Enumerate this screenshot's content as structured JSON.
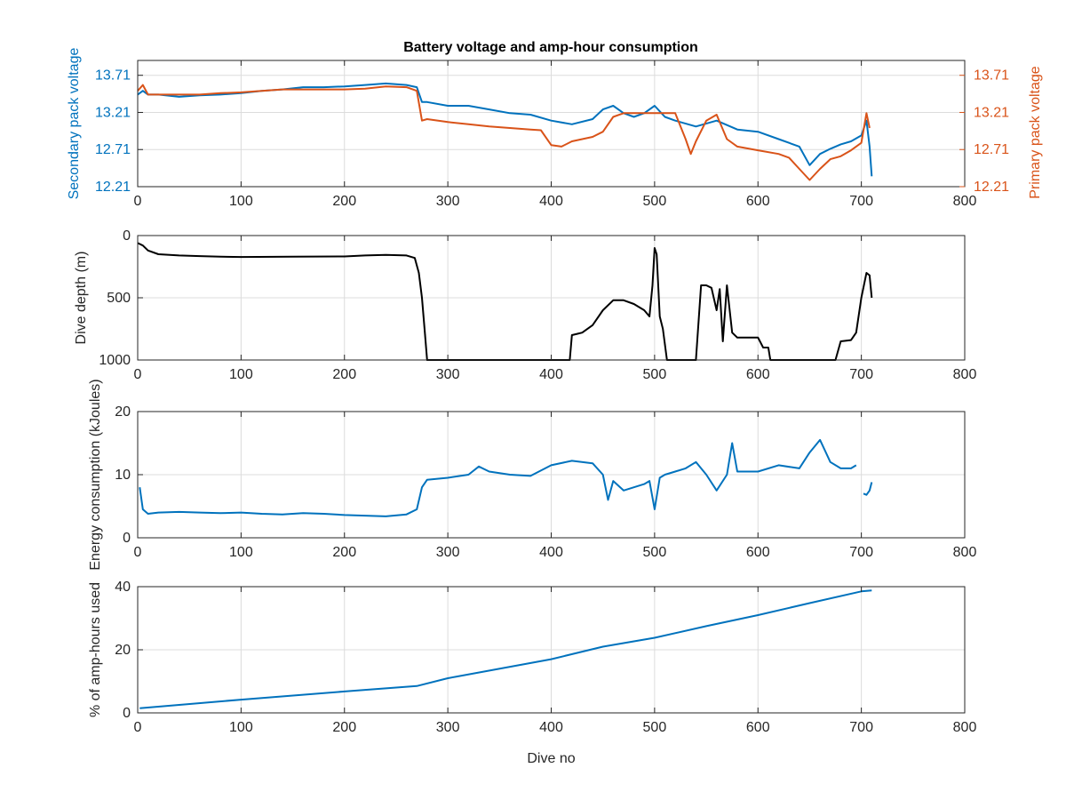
{
  "colors": {
    "blue": "#0072bd",
    "orange": "#d95319",
    "black": "#000000",
    "grid": "#dcdcdc",
    "axis": "#262626"
  },
  "chart_data": [
    {
      "type": "line",
      "title": "Battery voltage and amp-hour consumption",
      "xlabel": "",
      "xlim": [
        0,
        800
      ],
      "xticks": [
        0,
        100,
        200,
        300,
        400,
        500,
        600,
        700,
        800
      ],
      "grid": true,
      "y_left": {
        "label": "Secondary pack voltage",
        "lim": [
          12.21,
          13.91
        ],
        "ticks": [
          12.21,
          12.71,
          13.21,
          13.71
        ],
        "tick_labels": [
          "12.21",
          "12.71",
          "13.21",
          "13.71"
        ],
        "color": "#0072bd"
      },
      "y_right": {
        "label": "Primary pack voltage",
        "lim": [
          12.21,
          13.91
        ],
        "ticks": [
          12.21,
          12.71,
          13.21,
          13.71
        ],
        "tick_labels": [
          "12.21",
          "12.71",
          "13.21",
          "13.71"
        ],
        "color": "#d95319"
      },
      "series": [
        {
          "axis": "left",
          "color": "#0072bd",
          "x": [
            0,
            5,
            10,
            20,
            40,
            60,
            80,
            100,
            120,
            140,
            160,
            180,
            200,
            220,
            240,
            260,
            270,
            275,
            280,
            300,
            320,
            340,
            360,
            380,
            400,
            420,
            440,
            450,
            460,
            470,
            480,
            490,
            500,
            510,
            520,
            540,
            560,
            580,
            600,
            620,
            640,
            650,
            660,
            670,
            680,
            690,
            700,
            705,
            708,
            710
          ],
          "y": [
            13.45,
            13.5,
            13.45,
            13.45,
            13.42,
            13.44,
            13.45,
            13.47,
            13.5,
            13.52,
            13.55,
            13.55,
            13.56,
            13.58,
            13.6,
            13.58,
            13.55,
            13.35,
            13.35,
            13.3,
            13.3,
            13.25,
            13.2,
            13.18,
            13.1,
            13.05,
            13.12,
            13.25,
            13.3,
            13.2,
            13.15,
            13.2,
            13.3,
            13.15,
            13.1,
            13.02,
            13.1,
            12.98,
            12.95,
            12.85,
            12.75,
            12.5,
            12.65,
            12.72,
            12.78,
            12.82,
            12.9,
            13.1,
            12.75,
            12.35
          ]
        },
        {
          "axis": "right",
          "color": "#d95319",
          "x": [
            0,
            5,
            10,
            30,
            60,
            80,
            100,
            140,
            180,
            200,
            220,
            240,
            260,
            270,
            275,
            280,
            300,
            320,
            340,
            360,
            380,
            390,
            400,
            410,
            420,
            440,
            450,
            460,
            470,
            480,
            500,
            510,
            520,
            530,
            535,
            540,
            550,
            560,
            570,
            580,
            600,
            620,
            630,
            640,
            650,
            660,
            670,
            680,
            690,
            700,
            705,
            708
          ],
          "y": [
            13.5,
            13.58,
            13.45,
            13.45,
            13.45,
            13.47,
            13.48,
            13.52,
            13.52,
            13.52,
            13.53,
            13.56,
            13.55,
            13.5,
            13.1,
            13.12,
            13.08,
            13.05,
            13.02,
            13.0,
            12.98,
            12.97,
            12.77,
            12.75,
            12.82,
            12.88,
            12.95,
            13.15,
            13.2,
            13.2,
            13.2,
            13.2,
            13.2,
            12.85,
            12.65,
            12.82,
            13.1,
            13.18,
            12.85,
            12.75,
            12.7,
            12.65,
            12.6,
            12.45,
            12.3,
            12.45,
            12.58,
            12.62,
            12.7,
            12.8,
            13.2,
            13.0
          ]
        }
      ]
    },
    {
      "type": "line",
      "title": "",
      "xlabel": "",
      "ylabel": "Dive depth (m)",
      "xlim": [
        0,
        800
      ],
      "xticks": [
        0,
        100,
        200,
        300,
        400,
        500,
        600,
        700,
        800
      ],
      "ylim": [
        0,
        1000
      ],
      "yticks": [
        0,
        500,
        1000
      ],
      "yreverse": true,
      "grid": true,
      "series": [
        {
          "color": "#000000",
          "x": [
            0,
            5,
            10,
            20,
            40,
            60,
            80,
            100,
            150,
            200,
            220,
            240,
            260,
            268,
            272,
            275,
            278,
            280,
            300,
            350,
            400,
            418,
            420,
            425,
            430,
            440,
            450,
            460,
            470,
            480,
            490,
            495,
            498,
            500,
            502,
            505,
            508,
            512,
            516,
            540,
            545,
            550,
            555,
            560,
            563,
            566,
            570,
            575,
            580,
            600,
            605,
            610,
            612,
            615,
            650,
            675,
            680,
            690,
            695,
            700,
            705,
            708,
            710
          ],
          "y": [
            60,
            80,
            120,
            150,
            160,
            165,
            170,
            172,
            170,
            168,
            160,
            155,
            160,
            180,
            300,
            500,
            800,
            1000,
            1000,
            1000,
            1000,
            1000,
            800,
            790,
            780,
            720,
            600,
            520,
            520,
            550,
            600,
            650,
            400,
            100,
            150,
            650,
            750,
            1000,
            1000,
            1000,
            400,
            400,
            420,
            600,
            430,
            850,
            400,
            780,
            820,
            820,
            900,
            900,
            1000,
            1000,
            1000,
            1000,
            850,
            840,
            780,
            500,
            300,
            320,
            500
          ]
        }
      ]
    },
    {
      "type": "line",
      "title": "",
      "xlabel": "",
      "ylabel": "Energy consumption (kJoules)",
      "xlim": [
        0,
        800
      ],
      "xticks": [
        0,
        100,
        200,
        300,
        400,
        500,
        600,
        700,
        800
      ],
      "ylim": [
        0,
        20
      ],
      "yticks": [
        0,
        10,
        20
      ],
      "grid": true,
      "series": [
        {
          "color": "#0072bd",
          "x": [
            2,
            5,
            10,
            20,
            40,
            60,
            80,
            100,
            120,
            140,
            160,
            180,
            200,
            220,
            240,
            260,
            270,
            275,
            280,
            300,
            320,
            330,
            340,
            360,
            380,
            400,
            420,
            440,
            450,
            455,
            460,
            470,
            480,
            490,
            495,
            500,
            505,
            510,
            520,
            530,
            540,
            550,
            560,
            570,
            575,
            580,
            600,
            620,
            640,
            650,
            660,
            670,
            680,
            690,
            695
          ],
          "y": [
            8.0,
            4.5,
            3.8,
            4.0,
            4.1,
            4.0,
            3.9,
            4.0,
            3.8,
            3.7,
            3.9,
            3.8,
            3.6,
            3.5,
            3.4,
            3.7,
            4.5,
            8.0,
            9.2,
            9.5,
            10.0,
            11.3,
            10.5,
            10.0,
            9.8,
            11.5,
            12.2,
            11.8,
            10.0,
            6.0,
            9.0,
            7.5,
            8.0,
            8.5,
            9.0,
            4.5,
            9.5,
            10.0,
            10.5,
            11.0,
            12.0,
            10.0,
            7.5,
            10.0,
            15.0,
            10.5,
            10.5,
            11.5,
            11.0,
            13.5,
            15.5,
            12.0,
            11.0,
            11.0,
            11.5
          ],
          "x2": [
            702,
            705,
            708,
            710
          ],
          "y2": [
            7.0,
            6.8,
            7.5,
            8.8
          ]
        }
      ]
    },
    {
      "type": "line",
      "title": "",
      "xlabel": "Dive no",
      "ylabel": "% of amp-hours used",
      "xlim": [
        0,
        800
      ],
      "xticks": [
        0,
        100,
        200,
        300,
        400,
        500,
        600,
        700,
        800
      ],
      "ylim": [
        0,
        40
      ],
      "yticks": [
        0,
        20,
        40
      ],
      "grid": true,
      "series": [
        {
          "color": "#0072bd",
          "x": [
            2,
            100,
            200,
            270,
            300,
            400,
            450,
            500,
            550,
            600,
            650,
            700,
            710
          ],
          "y": [
            1.5,
            4.2,
            6.8,
            8.5,
            11.0,
            17.0,
            21.0,
            23.8,
            27.5,
            31.0,
            34.8,
            38.5,
            38.8
          ]
        }
      ]
    }
  ]
}
